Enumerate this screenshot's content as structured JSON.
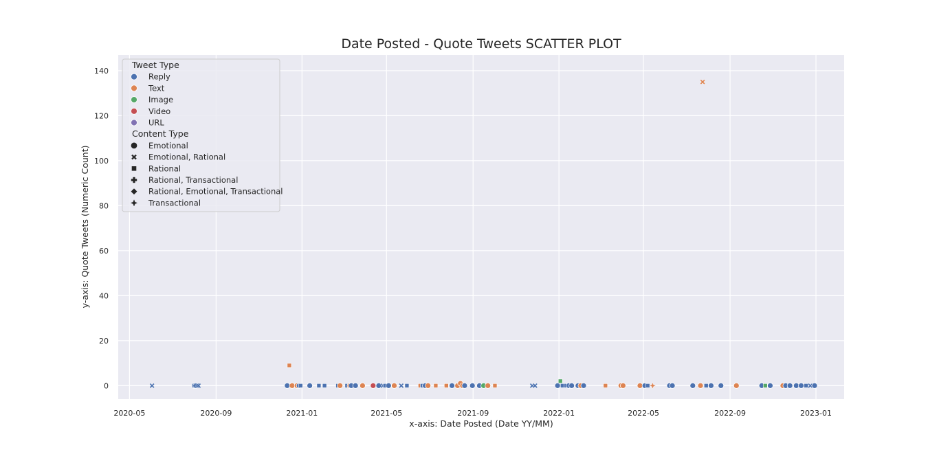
{
  "chart_data": {
    "type": "scatter",
    "title": "Date Posted - Quote Tweets SCATTER PLOT",
    "xlabel": "x-axis: Date Posted (Date YY/MM)",
    "ylabel": "y-axis: Quote Tweets (Numeric Count)",
    "x_axis_type": "date",
    "xlim": [
      "2020-04-15",
      "2023-02-10"
    ],
    "ylim": [
      -6,
      147
    ],
    "x_ticks": [
      {
        "value": "2020-05-01",
        "label": "2020-05"
      },
      {
        "value": "2020-09-01",
        "label": "2020-09"
      },
      {
        "value": "2021-01-01",
        "label": "2021-01"
      },
      {
        "value": "2021-05-01",
        "label": "2021-05"
      },
      {
        "value": "2021-09-01",
        "label": "2021-09"
      },
      {
        "value": "2022-01-01",
        "label": "2022-01"
      },
      {
        "value": "2022-05-01",
        "label": "2022-05"
      },
      {
        "value": "2022-09-01",
        "label": "2022-09"
      },
      {
        "value": "2023-01-01",
        "label": "2023-01"
      }
    ],
    "y_ticks": [
      0,
      20,
      40,
      60,
      80,
      100,
      120,
      140
    ],
    "grid": true,
    "legend": {
      "placement": "top-left",
      "hue_title": "Tweet Type",
      "hue_entries": [
        {
          "label": "Reply",
          "color": "#4c72b0"
        },
        {
          "label": "Text",
          "color": "#dd8452"
        },
        {
          "label": "Image",
          "color": "#55a868"
        },
        {
          "label": "Video",
          "color": "#c44e52"
        },
        {
          "label": "URL",
          "color": "#8172b3"
        }
      ],
      "style_title": "Content Type",
      "style_entries": [
        {
          "label": "Emotional",
          "marker": "circle"
        },
        {
          "label": "Emotional, Rational",
          "marker": "x"
        },
        {
          "label": "Rational",
          "marker": "square"
        },
        {
          "label": "Rational, Transactional",
          "marker": "plus"
        },
        {
          "label": "Rational, Emotional, Transactional",
          "marker": "diamond"
        },
        {
          "label": "Transactional",
          "marker": "star"
        }
      ]
    },
    "points": [
      {
        "x": "2020-06-02",
        "y": 0,
        "hue": "Reply",
        "style": "Emotional, Rational"
      },
      {
        "x": "2020-08-01",
        "y": 0,
        "hue": "Reply",
        "style": "Emotional"
      },
      {
        "x": "2020-08-03",
        "y": 0,
        "hue": "Reply",
        "style": "Emotional"
      },
      {
        "x": "2020-08-05",
        "y": 0,
        "hue": "Reply",
        "style": "Emotional, Rational"
      },
      {
        "x": "2020-08-07",
        "y": 0,
        "hue": "Reply",
        "style": "Emotional, Rational"
      },
      {
        "x": "2020-12-14",
        "y": 9,
        "hue": "Text",
        "style": "Rational"
      },
      {
        "x": "2020-12-11",
        "y": 0,
        "hue": "Reply",
        "style": "Emotional"
      },
      {
        "x": "2020-12-18",
        "y": 0,
        "hue": "Text",
        "style": "Emotional"
      },
      {
        "x": "2020-12-25",
        "y": 0,
        "hue": "Text",
        "style": "Emotional"
      },
      {
        "x": "2020-12-28",
        "y": 0,
        "hue": "Reply",
        "style": "Emotional"
      },
      {
        "x": "2020-12-30",
        "y": 0,
        "hue": "Reply",
        "style": "Rational"
      },
      {
        "x": "2021-01-12",
        "y": 0,
        "hue": "Reply",
        "style": "Emotional"
      },
      {
        "x": "2021-01-25",
        "y": 0,
        "hue": "Reply",
        "style": "Rational"
      },
      {
        "x": "2021-02-02",
        "y": 0,
        "hue": "Reply",
        "style": "Rational"
      },
      {
        "x": "2021-02-21",
        "y": 0,
        "hue": "Reply",
        "style": "Rational"
      },
      {
        "x": "2021-02-24",
        "y": 0,
        "hue": "Text",
        "style": "Emotional"
      },
      {
        "x": "2021-03-06",
        "y": 0,
        "hue": "Reply",
        "style": "Rational"
      },
      {
        "x": "2021-03-10",
        "y": 0,
        "hue": "Text",
        "style": "Emotional"
      },
      {
        "x": "2021-03-12",
        "y": 0,
        "hue": "Reply",
        "style": "Emotional"
      },
      {
        "x": "2021-03-18",
        "y": 0,
        "hue": "Reply",
        "style": "Emotional"
      },
      {
        "x": "2021-03-28",
        "y": 0,
        "hue": "Text",
        "style": "Emotional"
      },
      {
        "x": "2021-04-12",
        "y": 0,
        "hue": "Video",
        "style": "Emotional"
      },
      {
        "x": "2021-04-20",
        "y": 0,
        "hue": "Reply",
        "style": "Emotional"
      },
      {
        "x": "2021-04-26",
        "y": 0,
        "hue": "Reply",
        "style": "Emotional, Rational"
      },
      {
        "x": "2021-04-29",
        "y": 0,
        "hue": "Reply",
        "style": "Rational"
      },
      {
        "x": "2021-05-04",
        "y": 0,
        "hue": "Reply",
        "style": "Emotional"
      },
      {
        "x": "2021-05-12",
        "y": 0,
        "hue": "Text",
        "style": "Emotional"
      },
      {
        "x": "2021-05-22",
        "y": 0,
        "hue": "Reply",
        "style": "Emotional, Rational"
      },
      {
        "x": "2021-05-30",
        "y": 0,
        "hue": "Reply",
        "style": "Rational"
      },
      {
        "x": "2021-06-18",
        "y": 0,
        "hue": "Text",
        "style": "Rational"
      },
      {
        "x": "2021-06-21",
        "y": 0,
        "hue": "Reply",
        "style": "Rational"
      },
      {
        "x": "2021-06-25",
        "y": 0,
        "hue": "Reply",
        "style": "Emotional"
      },
      {
        "x": "2021-06-29",
        "y": 0,
        "hue": "Text",
        "style": "Emotional"
      },
      {
        "x": "2021-07-10",
        "y": 0,
        "hue": "Text",
        "style": "Rational"
      },
      {
        "x": "2021-07-25",
        "y": 0,
        "hue": "Text",
        "style": "Rational"
      },
      {
        "x": "2021-08-02",
        "y": 0,
        "hue": "Reply",
        "style": "Emotional"
      },
      {
        "x": "2021-08-10",
        "y": 0,
        "hue": "Text",
        "style": "Emotional"
      },
      {
        "x": "2021-08-14",
        "y": 1,
        "hue": "Text",
        "style": "Emotional"
      },
      {
        "x": "2021-08-17",
        "y": 0,
        "hue": "Text",
        "style": "Emotional"
      },
      {
        "x": "2021-08-20",
        "y": 0,
        "hue": "Reply",
        "style": "Emotional"
      },
      {
        "x": "2021-08-31",
        "y": 0,
        "hue": "Reply",
        "style": "Emotional"
      },
      {
        "x": "2021-09-10",
        "y": 0,
        "hue": "Reply",
        "style": "Emotional"
      },
      {
        "x": "2021-09-16",
        "y": 0,
        "hue": "Image",
        "style": "Emotional"
      },
      {
        "x": "2021-09-22",
        "y": 0,
        "hue": "Text",
        "style": "Emotional"
      },
      {
        "x": "2021-10-02",
        "y": 0,
        "hue": "Text",
        "style": "Rational"
      },
      {
        "x": "2021-11-24",
        "y": 0,
        "hue": "Reply",
        "style": "Emotional, Rational"
      },
      {
        "x": "2021-11-28",
        "y": 0,
        "hue": "Reply",
        "style": "Emotional, Rational"
      },
      {
        "x": "2021-12-30",
        "y": 0,
        "hue": "Reply",
        "style": "Emotional"
      },
      {
        "x": "2022-01-03",
        "y": 2,
        "hue": "Image",
        "style": "Rational"
      },
      {
        "x": "2022-01-06",
        "y": 0,
        "hue": "Reply",
        "style": "Rational"
      },
      {
        "x": "2022-01-11",
        "y": 0,
        "hue": "Reply",
        "style": "Rational"
      },
      {
        "x": "2022-01-15",
        "y": 0,
        "hue": "Reply",
        "style": "Emotional"
      },
      {
        "x": "2022-01-19",
        "y": 0,
        "hue": "Reply",
        "style": "Emotional"
      },
      {
        "x": "2022-01-28",
        "y": 0,
        "hue": "Reply",
        "style": "Emotional"
      },
      {
        "x": "2022-02-01",
        "y": 0,
        "hue": "Text",
        "style": "Emotional"
      },
      {
        "x": "2022-02-05",
        "y": 0,
        "hue": "Reply",
        "style": "Emotional"
      },
      {
        "x": "2022-03-08",
        "y": 0,
        "hue": "Text",
        "style": "Rational"
      },
      {
        "x": "2022-03-30",
        "y": 0,
        "hue": "Text",
        "style": "Emotional"
      },
      {
        "x": "2022-04-02",
        "y": 0,
        "hue": "Text",
        "style": "Emotional"
      },
      {
        "x": "2022-04-26",
        "y": 0,
        "hue": "Text",
        "style": "Emotional"
      },
      {
        "x": "2022-05-03",
        "y": 0,
        "hue": "Reply",
        "style": "Emotional"
      },
      {
        "x": "2022-05-07",
        "y": 0,
        "hue": "Reply",
        "style": "Rational"
      },
      {
        "x": "2022-05-14",
        "y": 0,
        "hue": "Text",
        "style": "Transactional"
      },
      {
        "x": "2022-06-07",
        "y": 0,
        "hue": "Reply",
        "style": "Emotional"
      },
      {
        "x": "2022-06-11",
        "y": 0,
        "hue": "Reply",
        "style": "Emotional"
      },
      {
        "x": "2022-07-10",
        "y": 0,
        "hue": "Reply",
        "style": "Emotional"
      },
      {
        "x": "2022-07-21",
        "y": 0,
        "hue": "Text",
        "style": "Emotional"
      },
      {
        "x": "2022-07-24",
        "y": 135,
        "hue": "Text",
        "style": "Emotional, Rational"
      },
      {
        "x": "2022-07-29",
        "y": 0,
        "hue": "Reply",
        "style": "Rational"
      },
      {
        "x": "2022-08-05",
        "y": 0,
        "hue": "Reply",
        "style": "Emotional"
      },
      {
        "x": "2022-08-19",
        "y": 0,
        "hue": "Reply",
        "style": "Emotional"
      },
      {
        "x": "2022-09-10",
        "y": 0,
        "hue": "Text",
        "style": "Emotional"
      },
      {
        "x": "2022-10-16",
        "y": 0,
        "hue": "Reply",
        "style": "Emotional"
      },
      {
        "x": "2022-10-21",
        "y": 0,
        "hue": "Image",
        "style": "Rational"
      },
      {
        "x": "2022-10-28",
        "y": 0,
        "hue": "Reply",
        "style": "Emotional"
      },
      {
        "x": "2022-11-15",
        "y": 0,
        "hue": "Text",
        "style": "Emotional"
      },
      {
        "x": "2022-11-19",
        "y": 0,
        "hue": "Reply",
        "style": "Emotional"
      },
      {
        "x": "2022-11-25",
        "y": 0,
        "hue": "Reply",
        "style": "Emotional"
      },
      {
        "x": "2022-12-04",
        "y": 0,
        "hue": "Reply",
        "style": "Emotional"
      },
      {
        "x": "2022-12-11",
        "y": 0,
        "hue": "Reply",
        "style": "Emotional"
      },
      {
        "x": "2022-12-18",
        "y": 0,
        "hue": "Reply",
        "style": "Rational"
      },
      {
        "x": "2022-12-24",
        "y": 0,
        "hue": "Reply",
        "style": "Emotional, Rational"
      },
      {
        "x": "2022-12-30",
        "y": 0,
        "hue": "Reply",
        "style": "Emotional"
      }
    ]
  }
}
